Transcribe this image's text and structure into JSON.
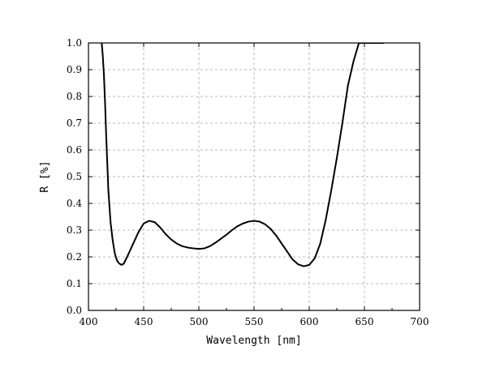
{
  "chart_data": {
    "type": "line",
    "title": "",
    "xlabel": "Wavelength [nm]",
    "ylabel": "R [%]",
    "xlim": [
      400,
      700
    ],
    "ylim": [
      0.0,
      1.0
    ],
    "xticks": [
      400,
      450,
      500,
      550,
      600,
      650,
      700
    ],
    "xtick_labels": [
      "400",
      "450",
      "500",
      "550",
      "600",
      "650",
      "700"
    ],
    "yticks": [
      0.0,
      0.1,
      0.2,
      0.3,
      0.4,
      0.5,
      0.6,
      0.7,
      0.8,
      0.9,
      1.0
    ],
    "ytick_labels": [
      "0.0",
      "0.1",
      "0.2",
      "0.3",
      "0.4",
      "0.5",
      "0.6",
      "0.7",
      "0.8",
      "0.9",
      "1.0"
    ],
    "grid": true,
    "legend": "none",
    "series": [
      {
        "color": "#000000",
        "x": [
          412,
          413,
          414,
          415,
          416,
          418,
          420,
          422,
          424,
          426,
          428,
          430,
          432,
          435,
          440,
          445,
          450,
          455,
          460,
          465,
          470,
          475,
          480,
          485,
          490,
          495,
          500,
          505,
          510,
          515,
          520,
          525,
          530,
          535,
          540,
          545,
          550,
          555,
          560,
          565,
          570,
          575,
          580,
          585,
          590,
          595,
          600,
          605,
          610,
          615,
          620,
          625,
          630,
          635,
          640,
          645,
          650,
          655,
          660,
          663,
          666,
          667.5
        ],
        "y": [
          1.0,
          0.95,
          0.88,
          0.78,
          0.66,
          0.45,
          0.33,
          0.26,
          0.21,
          0.185,
          0.175,
          0.17,
          0.175,
          0.2,
          0.245,
          0.29,
          0.325,
          0.335,
          0.33,
          0.31,
          0.285,
          0.265,
          0.25,
          0.24,
          0.235,
          0.232,
          0.23,
          0.232,
          0.24,
          0.253,
          0.268,
          0.283,
          0.3,
          0.315,
          0.325,
          0.332,
          0.335,
          0.332,
          0.322,
          0.305,
          0.28,
          0.25,
          0.22,
          0.19,
          0.172,
          0.165,
          0.17,
          0.195,
          0.25,
          0.34,
          0.45,
          0.57,
          0.7,
          0.84,
          0.93,
          1.0,
          1.0,
          1.0,
          1.0,
          1.0,
          1.0,
          1.0
        ]
      }
    ]
  }
}
